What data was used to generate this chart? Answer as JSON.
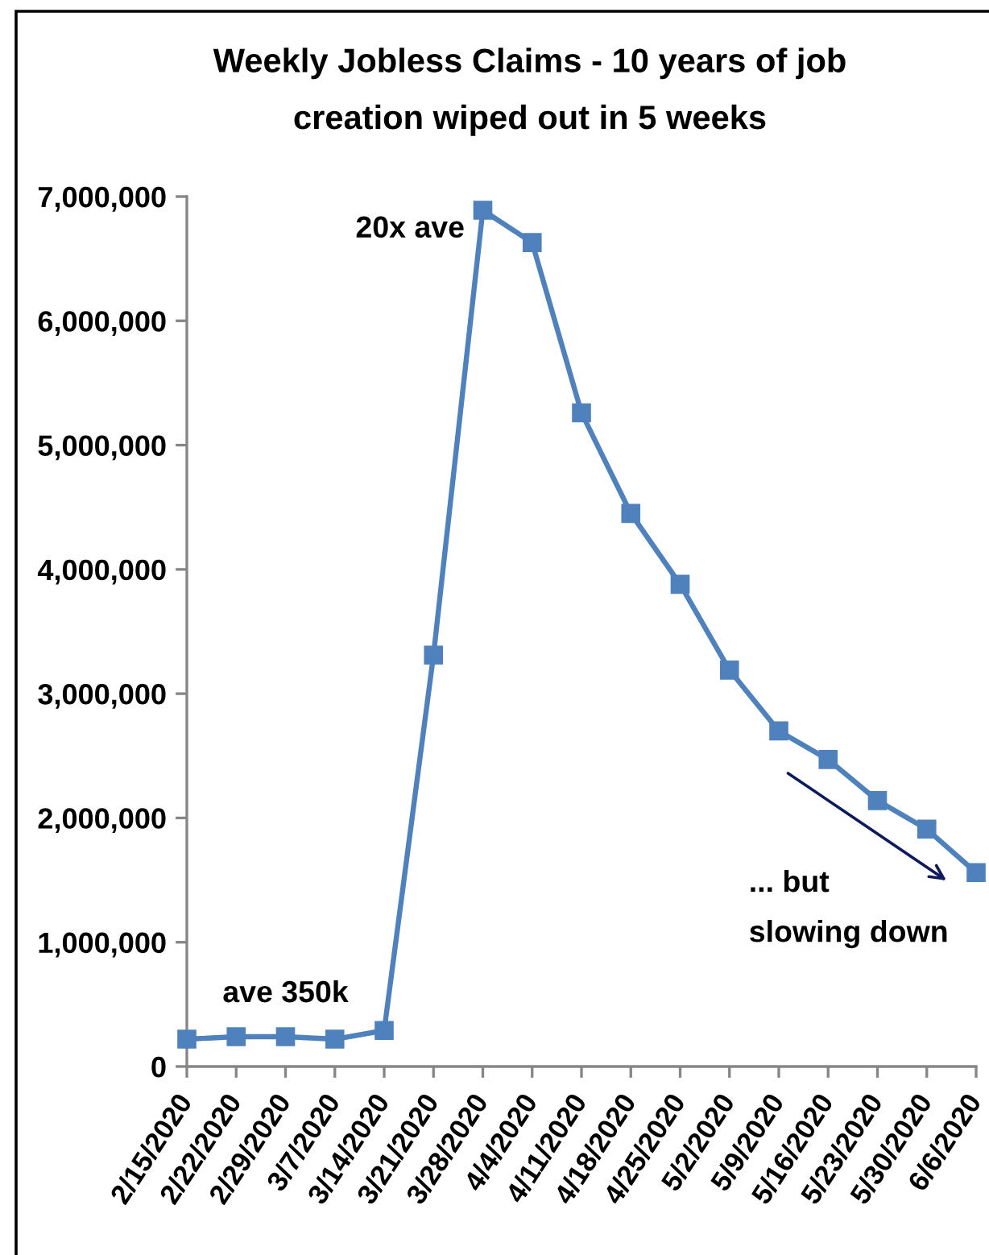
{
  "chart_data": {
    "type": "line",
    "title": "Weekly Jobless Claims - 10 years of job\ncreation wiped out in 5 weeks",
    "categories": [
      "2/15/2020",
      "2/22/2020",
      "2/29/2020",
      "3/7/2020",
      "3/14/2020",
      "3/21/2020",
      "3/28/2020",
      "4/4/2020",
      "4/11/2020",
      "4/18/2020",
      "4/25/2020",
      "5/2/2020",
      "5/9/2020",
      "5/16/2020",
      "5/23/2020",
      "5/30/2020",
      "6/6/2020"
    ],
    "series": [
      {
        "color": "#4f81bd",
        "values": [
          220000,
          240000,
          240000,
          220000,
          290000,
          3310000,
          6890000,
          6630000,
          5260000,
          4450000,
          3880000,
          3190000,
          2700000,
          2470000,
          2140000,
          1910000,
          1560000
        ]
      }
    ],
    "ylim": [
      0,
      7000000
    ],
    "yticks": [
      0,
      {
        "value": 1000000,
        "label": "1,000,000"
      },
      {
        "value": 2000000,
        "label": "2,000,000"
      },
      {
        "value": 3000000,
        "label": "3,000,000"
      },
      {
        "value": 4000000,
        "label": "4,000,000"
      },
      {
        "value": 5000000,
        "label": "5,000,000"
      },
      {
        "value": 6000000,
        "label": "6,000,000"
      },
      {
        "value": 7000000,
        "label": "7,000,000"
      }
    ],
    "marker": "square",
    "line_style": "solid",
    "annotations": [
      "20x ave",
      "ave 350k",
      "... but\nslowing down"
    ]
  }
}
